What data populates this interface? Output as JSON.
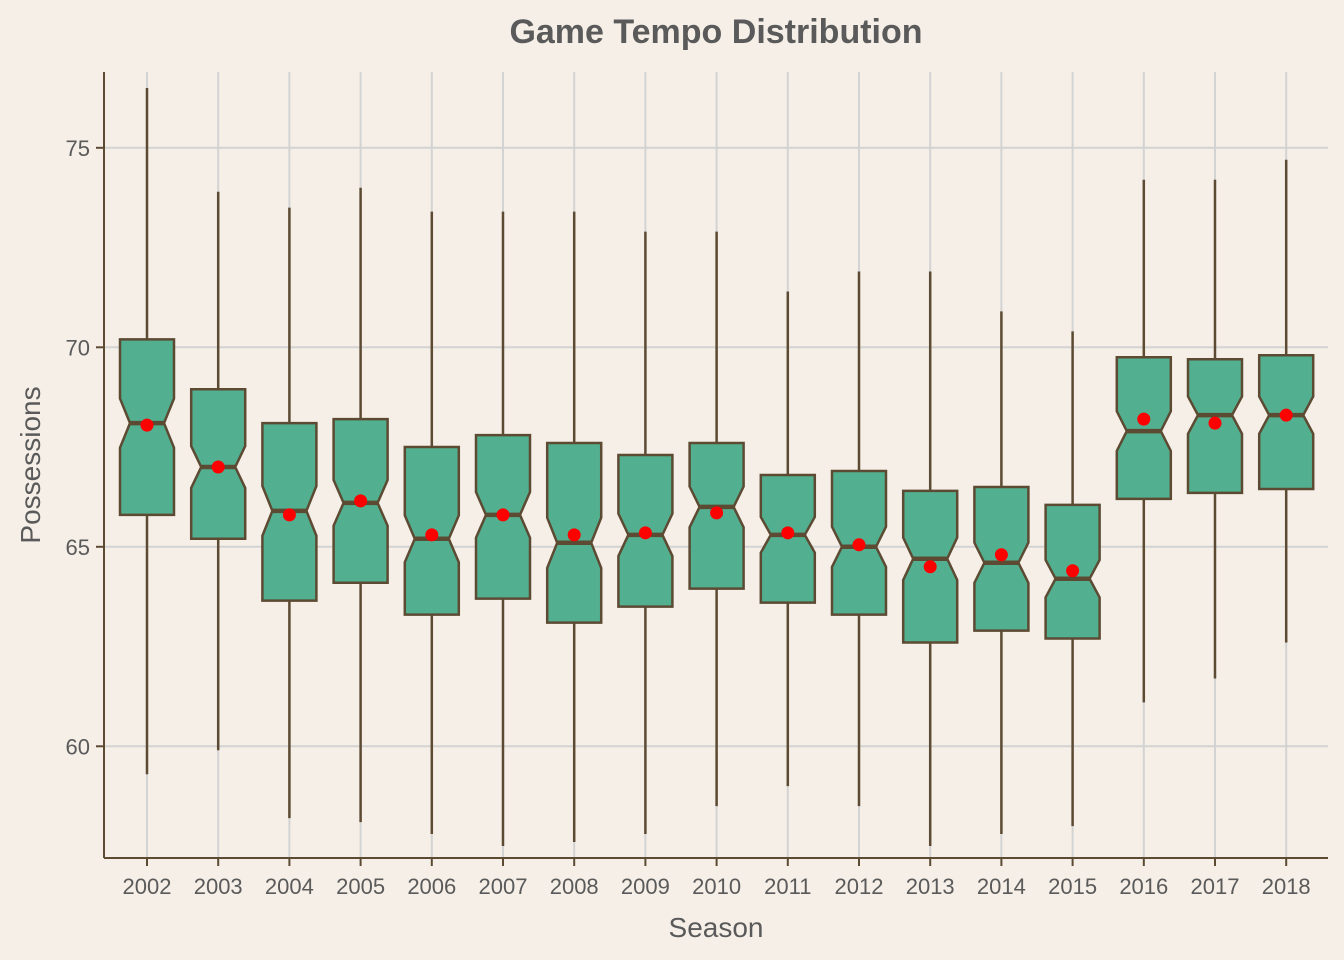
{
  "chart_data": {
    "type": "boxplot",
    "title": "Game Tempo Distribution",
    "xlabel": "Season",
    "ylabel": "Possessions",
    "ylim": [
      57.2,
      76.9
    ],
    "yticks": [
      60,
      65,
      70,
      75
    ],
    "grid": true,
    "colors": {
      "background": "#f5efe7",
      "box_fill": "#52b090",
      "box_stroke": "#5c4a33",
      "mean_marker": "#ff0000",
      "grid": "#d3d3d3",
      "text": "#5a5a5a"
    },
    "categories": [
      "2002",
      "2003",
      "2004",
      "2005",
      "2006",
      "2007",
      "2008",
      "2009",
      "2010",
      "2011",
      "2012",
      "2013",
      "2014",
      "2015",
      "2016",
      "2017",
      "2018"
    ],
    "boxes": [
      {
        "season": "2002",
        "whisker_low": 59.3,
        "q1": 65.8,
        "median": 68.1,
        "q3": 70.2,
        "whisker_high": 76.5,
        "mean": 68.05
      },
      {
        "season": "2003",
        "whisker_low": 59.9,
        "q1": 65.2,
        "median": 67.0,
        "q3": 68.95,
        "whisker_high": 73.9,
        "mean": 67.0
      },
      {
        "season": "2004",
        "whisker_low": 58.2,
        "q1": 63.65,
        "median": 65.9,
        "q3": 68.1,
        "whisker_high": 73.5,
        "mean": 65.8
      },
      {
        "season": "2005",
        "whisker_low": 58.1,
        "q1": 64.1,
        "median": 66.1,
        "q3": 68.2,
        "whisker_high": 74.0,
        "mean": 66.15
      },
      {
        "season": "2006",
        "whisker_low": 57.8,
        "q1": 63.3,
        "median": 65.2,
        "q3": 67.5,
        "whisker_high": 73.4,
        "mean": 65.3
      },
      {
        "season": "2007",
        "whisker_low": 57.5,
        "q1": 63.7,
        "median": 65.8,
        "q3": 67.8,
        "whisker_high": 73.4,
        "mean": 65.8
      },
      {
        "season": "2008",
        "whisker_low": 57.6,
        "q1": 63.1,
        "median": 65.1,
        "q3": 67.6,
        "whisker_high": 73.4,
        "mean": 65.3
      },
      {
        "season": "2009",
        "whisker_low": 57.8,
        "q1": 63.5,
        "median": 65.3,
        "q3": 67.3,
        "whisker_high": 72.9,
        "mean": 65.35
      },
      {
        "season": "2010",
        "whisker_low": 58.5,
        "q1": 63.95,
        "median": 66.0,
        "q3": 67.6,
        "whisker_high": 72.9,
        "mean": 65.85
      },
      {
        "season": "2011",
        "whisker_low": 59.0,
        "q1": 63.6,
        "median": 65.3,
        "q3": 66.8,
        "whisker_high": 71.4,
        "mean": 65.35
      },
      {
        "season": "2012",
        "whisker_low": 58.5,
        "q1": 63.3,
        "median": 65.0,
        "q3": 66.9,
        "whisker_high": 71.9,
        "mean": 65.05
      },
      {
        "season": "2013",
        "whisker_low": 57.5,
        "q1": 62.6,
        "median": 64.7,
        "q3": 66.4,
        "whisker_high": 71.9,
        "mean": 64.5
      },
      {
        "season": "2014",
        "whisker_low": 57.8,
        "q1": 62.9,
        "median": 64.6,
        "q3": 66.5,
        "whisker_high": 70.9,
        "mean": 64.8
      },
      {
        "season": "2015",
        "whisker_low": 58.0,
        "q1": 62.7,
        "median": 64.2,
        "q3": 66.05,
        "whisker_high": 70.4,
        "mean": 64.4
      },
      {
        "season": "2016",
        "whisker_low": 61.1,
        "q1": 66.2,
        "median": 67.9,
        "q3": 69.75,
        "whisker_high": 74.2,
        "mean": 68.2
      },
      {
        "season": "2017",
        "whisker_low": 61.7,
        "q1": 66.35,
        "median": 68.3,
        "q3": 69.7,
        "whisker_high": 74.2,
        "mean": 68.1
      },
      {
        "season": "2018",
        "whisker_low": 62.6,
        "q1": 66.45,
        "median": 68.3,
        "q3": 69.8,
        "whisker_high": 74.7,
        "mean": 68.3
      }
    ]
  }
}
